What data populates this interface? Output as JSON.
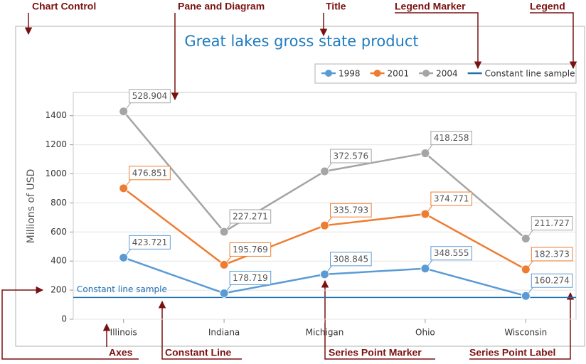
{
  "chart_data": {
    "type": "stacked-line",
    "title": "Great lakes gross state product",
    "y_label": "Millions of USD",
    "categories": [
      "Illinois",
      "Indiana",
      "Michigan",
      "Ohio",
      "Wisconsin"
    ],
    "series": [
      {
        "name": "1998",
        "color": "#5b9bd5",
        "values": [
          423.721,
          178.719,
          308.845,
          348.555,
          160.274
        ]
      },
      {
        "name": "2001",
        "color": "#ed7d31",
        "values": [
          476.851,
          195.769,
          335.793,
          374.771,
          182.373
        ]
      },
      {
        "name": "2004",
        "color": "#a5a5a5",
        "values": [
          528.904,
          227.271,
          372.576,
          418.258,
          211.727
        ]
      }
    ],
    "constant_line": {
      "name": "Constant line sample",
      "value": 150,
      "color": "#1f6fb2"
    },
    "ylim": [
      0,
      1560
    ],
    "yticks": [
      0,
      200,
      400,
      600,
      800,
      1000,
      1200,
      1400
    ],
    "grid": true,
    "legend": "top-right",
    "annotations": [
      "Chart Control",
      "Pane and Diagram",
      "Title",
      "Legend Marker",
      "Legend",
      "Axes",
      "Constant Line",
      "Series Point Marker",
      "Series Point Label"
    ]
  }
}
